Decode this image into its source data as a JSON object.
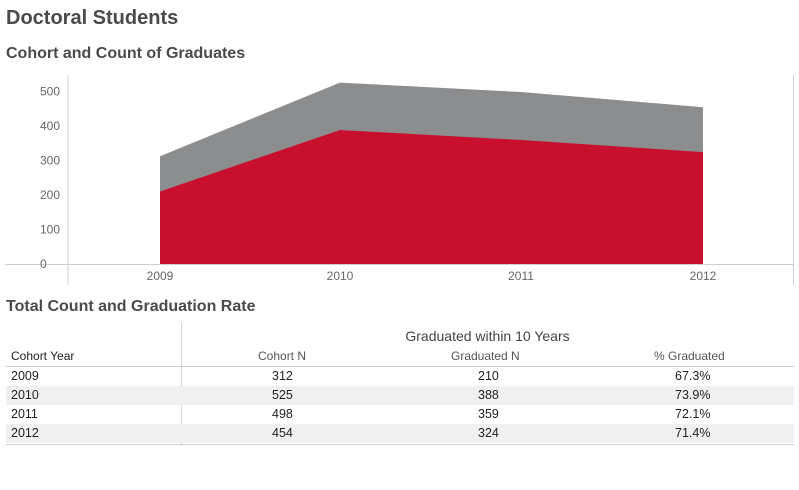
{
  "header": {
    "title": "Doctoral Students",
    "chart_subtitle": "Cohort and Count of Graduates",
    "table_subtitle": "Total Count and Graduation Rate"
  },
  "colors": {
    "cohort": "#8b8d8f",
    "graduated": "#c8102e",
    "axis": "#cfcfcf",
    "tick_text": "#666666"
  },
  "chart_data": {
    "type": "area",
    "categories": [
      "2009",
      "2010",
      "2011",
      "2012"
    ],
    "series": [
      {
        "name": "",
        "values": [
          312,
          525,
          498,
          454
        ],
        "color": "#8b8d8f"
      },
      {
        "name": "",
        "values": [
          210,
          388,
          359,
          324
        ],
        "color": "#c8102e"
      }
    ],
    "title": "Cohort and Count of Graduates",
    "xlabel": "",
    "ylabel": "",
    "ylim": [
      0,
      550
    ],
    "yticks": [
      0,
      100,
      200,
      300,
      400,
      500
    ],
    "grid": false,
    "legend": "none"
  },
  "table": {
    "group_header": "Graduated within 10 Years",
    "row_header": "Cohort Year",
    "columns": [
      "Cohort N",
      "Graduated N",
      "% Graduated"
    ],
    "rows": [
      {
        "year": "2009",
        "cohort_n": "312",
        "graduated_n": "210",
        "pct": "67.3%"
      },
      {
        "year": "2010",
        "cohort_n": "525",
        "graduated_n": "388",
        "pct": "73.9%"
      },
      {
        "year": "2011",
        "cohort_n": "498",
        "graduated_n": "359",
        "pct": "72.1%"
      },
      {
        "year": "2012",
        "cohort_n": "454",
        "graduated_n": "324",
        "pct": "71.4%"
      }
    ]
  }
}
